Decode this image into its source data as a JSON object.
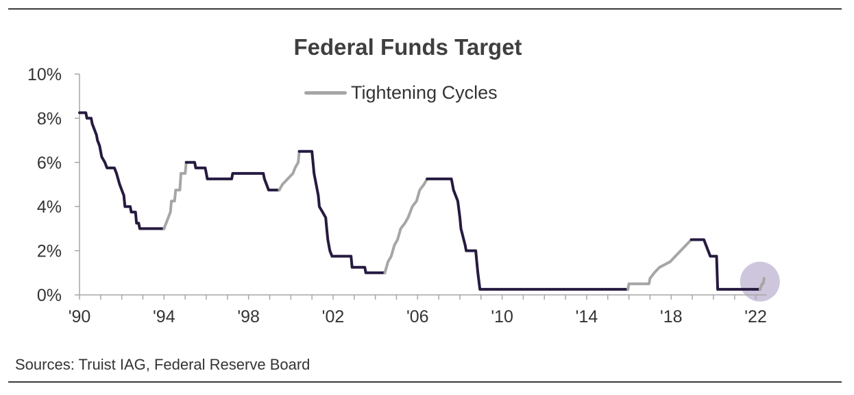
{
  "chart_data": {
    "type": "line",
    "title": "Federal Funds Target",
    "source": "Sources: Truist IAG, Federal Reserve Board",
    "xlim": [
      1990,
      2022.5
    ],
    "ylim": [
      0,
      10
    ],
    "x_ticks": [
      1990,
      1994,
      1998,
      2002,
      2006,
      2010,
      2014,
      2018,
      2022
    ],
    "x_tick_labels": [
      "'90",
      "'94",
      "'98",
      "'02",
      "'06",
      "'10",
      "'14",
      "'18",
      "'22"
    ],
    "y_ticks": [
      0,
      2,
      4,
      6,
      8,
      10
    ],
    "y_tick_labels": [
      "0%",
      "2%",
      "4%",
      "6%",
      "8%",
      "10%"
    ],
    "legend": {
      "position": "top-center",
      "entries": [
        {
          "label": "Tightening Cycles",
          "color": "#a6a6a6"
        }
      ]
    },
    "colors": {
      "base": "#261a40",
      "tightening": "#a6a6a6",
      "highlight": "#c5bcd6"
    },
    "series": [
      {
        "values": [
          [
            1990.0,
            8.25
          ],
          [
            1990.3,
            8.25
          ],
          [
            1990.35,
            8.0
          ],
          [
            1990.55,
            8.0
          ],
          [
            1990.6,
            7.75
          ],
          [
            1990.8,
            7.25
          ],
          [
            1990.85,
            7.0
          ],
          [
            1990.95,
            6.75
          ],
          [
            1991.05,
            6.25
          ],
          [
            1991.2,
            6.0
          ],
          [
            1991.3,
            5.75
          ],
          [
            1991.65,
            5.75
          ],
          [
            1991.75,
            5.5
          ],
          [
            1991.9,
            5.0
          ],
          [
            1992.1,
            4.5
          ],
          [
            1992.15,
            4.0
          ],
          [
            1992.4,
            4.0
          ],
          [
            1992.45,
            3.75
          ],
          [
            1992.65,
            3.75
          ],
          [
            1992.7,
            3.25
          ],
          [
            1992.8,
            3.25
          ],
          [
            1992.85,
            3.0
          ],
          [
            1994.0,
            3.0
          ]
        ]
      },
      {
        "name": "Tightening Cycles",
        "values": [
          [
            1994.0,
            3.0
          ],
          [
            1994.2,
            3.5
          ],
          [
            1994.3,
            3.75
          ],
          [
            1994.35,
            4.25
          ],
          [
            1994.5,
            4.25
          ],
          [
            1994.55,
            4.75
          ],
          [
            1994.75,
            4.75
          ],
          [
            1994.8,
            5.5
          ],
          [
            1995.0,
            5.5
          ],
          [
            1995.05,
            6.0
          ]
        ]
      },
      {
        "values": [
          [
            1995.05,
            6.0
          ],
          [
            1995.45,
            6.0
          ],
          [
            1995.5,
            5.75
          ],
          [
            1995.95,
            5.75
          ],
          [
            1996.0,
            5.5
          ],
          [
            1996.05,
            5.25
          ],
          [
            1997.2,
            5.25
          ],
          [
            1997.25,
            5.5
          ],
          [
            1998.7,
            5.5
          ],
          [
            1998.75,
            5.25
          ],
          [
            1998.85,
            5.0
          ],
          [
            1998.95,
            4.75
          ],
          [
            1999.45,
            4.75
          ]
        ]
      },
      {
        "name": "Tightening Cycles",
        "values": [
          [
            1999.45,
            4.75
          ],
          [
            1999.6,
            5.0
          ],
          [
            1999.85,
            5.25
          ],
          [
            2000.1,
            5.5
          ],
          [
            2000.2,
            5.75
          ],
          [
            2000.35,
            6.0
          ],
          [
            2000.4,
            6.5
          ]
        ]
      },
      {
        "values": [
          [
            2000.4,
            6.5
          ],
          [
            2001.0,
            6.5
          ],
          [
            2001.05,
            6.0
          ],
          [
            2001.1,
            5.5
          ],
          [
            2001.2,
            5.0
          ],
          [
            2001.3,
            4.5
          ],
          [
            2001.35,
            4.0
          ],
          [
            2001.5,
            3.75
          ],
          [
            2001.65,
            3.5
          ],
          [
            2001.7,
            3.0
          ],
          [
            2001.75,
            2.5
          ],
          [
            2001.85,
            2.0
          ],
          [
            2001.95,
            1.75
          ],
          [
            2002.85,
            1.75
          ],
          [
            2002.9,
            1.25
          ],
          [
            2003.5,
            1.25
          ],
          [
            2003.55,
            1.0
          ],
          [
            2004.45,
            1.0
          ]
        ]
      },
      {
        "name": "Tightening Cycles",
        "values": [
          [
            2004.45,
            1.0
          ],
          [
            2004.6,
            1.5
          ],
          [
            2004.75,
            1.75
          ],
          [
            2004.9,
            2.25
          ],
          [
            2005.05,
            2.5
          ],
          [
            2005.2,
            3.0
          ],
          [
            2005.4,
            3.25
          ],
          [
            2005.55,
            3.5
          ],
          [
            2005.75,
            4.0
          ],
          [
            2005.95,
            4.25
          ],
          [
            2006.1,
            4.75
          ],
          [
            2006.3,
            5.0
          ],
          [
            2006.45,
            5.25
          ]
        ]
      },
      {
        "values": [
          [
            2006.45,
            5.25
          ],
          [
            2007.6,
            5.25
          ],
          [
            2007.7,
            4.75
          ],
          [
            2007.8,
            4.5
          ],
          [
            2007.9,
            4.25
          ],
          [
            2008.0,
            3.5
          ],
          [
            2008.05,
            3.0
          ],
          [
            2008.25,
            2.25
          ],
          [
            2008.3,
            2.0
          ],
          [
            2008.75,
            2.0
          ],
          [
            2008.8,
            1.5
          ],
          [
            2008.85,
            1.0
          ],
          [
            2008.95,
            0.25
          ],
          [
            2015.95,
            0.25
          ]
        ]
      },
      {
        "name": "Tightening Cycles",
        "values": [
          [
            2015.95,
            0.25
          ],
          [
            2016.0,
            0.5
          ],
          [
            2016.95,
            0.5
          ],
          [
            2017.0,
            0.75
          ],
          [
            2017.2,
            1.0
          ],
          [
            2017.45,
            1.25
          ],
          [
            2017.95,
            1.5
          ],
          [
            2018.2,
            1.75
          ],
          [
            2018.45,
            2.0
          ],
          [
            2018.7,
            2.25
          ],
          [
            2018.95,
            2.5
          ]
        ]
      },
      {
        "values": [
          [
            2018.95,
            2.5
          ],
          [
            2019.55,
            2.5
          ],
          [
            2019.65,
            2.25
          ],
          [
            2019.75,
            2.0
          ],
          [
            2019.85,
            1.75
          ],
          [
            2020.15,
            1.75
          ],
          [
            2020.2,
            0.25
          ],
          [
            2022.2,
            0.25
          ]
        ]
      },
      {
        "name": "Tightening Cycles",
        "values": [
          [
            2022.2,
            0.25
          ],
          [
            2022.3,
            0.5
          ],
          [
            2022.35,
            0.5
          ],
          [
            2022.4,
            0.75
          ]
        ]
      }
    ],
    "annotations": [
      {
        "type": "highlight-circle",
        "x": 2022.2,
        "y": 0.6
      }
    ]
  }
}
